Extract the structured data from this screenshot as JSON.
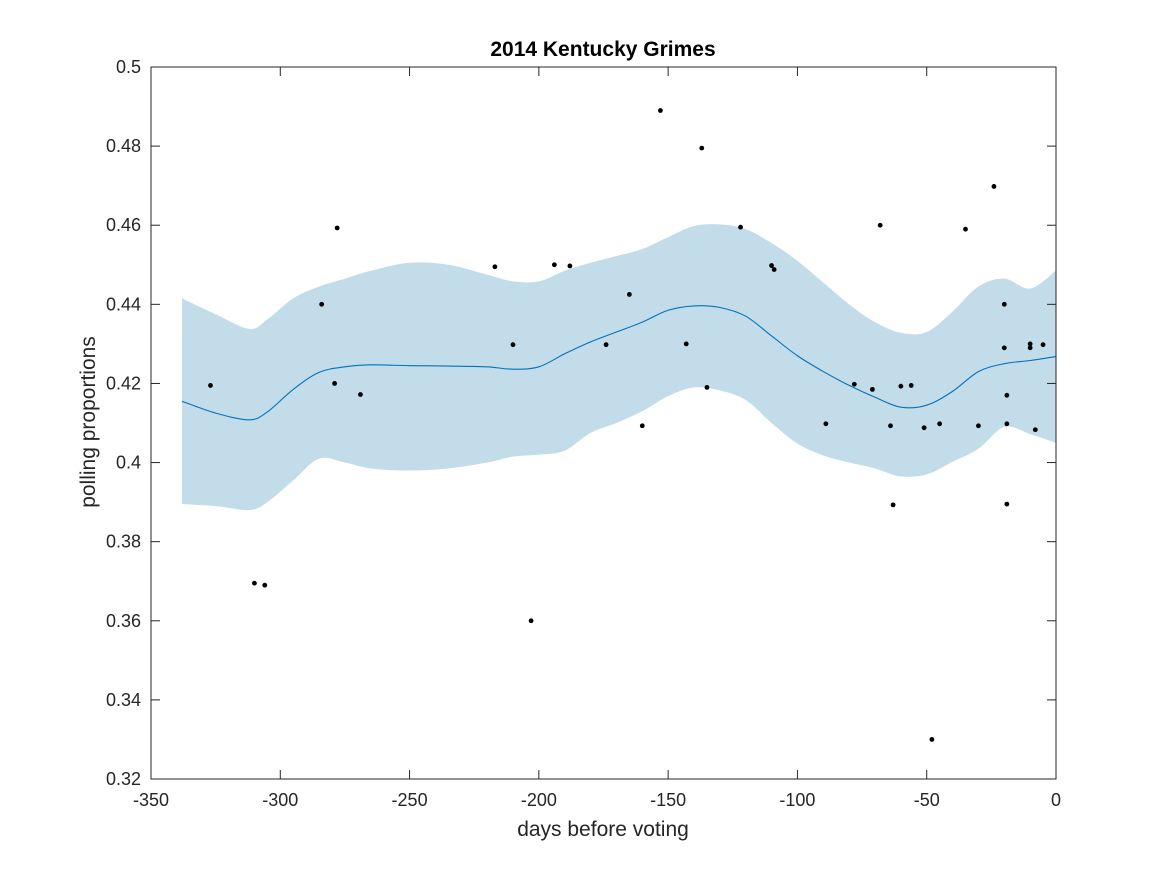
{
  "chart_data": {
    "type": "line",
    "title": "2014 Kentucky Grimes",
    "xlabel": "days before voting",
    "ylabel": "polling proportions",
    "xlim": [
      -350,
      0
    ],
    "ylim": [
      0.32,
      0.5
    ],
    "xticks": [
      -350,
      -300,
      -250,
      -200,
      -150,
      -100,
      -50,
      0
    ],
    "yticks": [
      0.32,
      0.34,
      0.36,
      0.38,
      0.4,
      0.42,
      0.44,
      0.46,
      0.48,
      0.5
    ],
    "xtick_labels": [
      "-350",
      "-300",
      "-250",
      "-200",
      "-150",
      "-100",
      "-50",
      "0"
    ],
    "ytick_labels": [
      "0.32",
      "0.34",
      "0.36",
      "0.38",
      "0.4",
      "0.42",
      "0.44",
      "0.46",
      "0.48",
      "0.5"
    ],
    "grid": false,
    "colors": {
      "band": "#c2dcea",
      "line": "#0072bd",
      "points": "#000000",
      "axes": "#262626"
    },
    "trend": {
      "x": [
        -338,
        -325,
        -312,
        -305,
        -295,
        -285,
        -275,
        -265,
        -250,
        -235,
        -220,
        -210,
        -200,
        -190,
        -180,
        -170,
        -160,
        -150,
        -140,
        -130,
        -120,
        -110,
        -100,
        -90,
        -80,
        -70,
        -60,
        -50,
        -40,
        -30,
        -20,
        -10,
        0
      ],
      "y": [
        0.4155,
        0.4125,
        0.4108,
        0.4128,
        0.4185,
        0.4228,
        0.4242,
        0.4247,
        0.4245,
        0.4244,
        0.4242,
        0.4236,
        0.4242,
        0.4275,
        0.4305,
        0.433,
        0.4355,
        0.4385,
        0.4396,
        0.4392,
        0.437,
        0.432,
        0.427,
        0.423,
        0.4195,
        0.4165,
        0.414,
        0.4145,
        0.418,
        0.423,
        0.425,
        0.4258,
        0.4268
      ]
    },
    "band_upper": [
      0.4415,
      0.4375,
      0.4338,
      0.4362,
      0.4415,
      0.4445,
      0.4465,
      0.4485,
      0.4505,
      0.45,
      0.4475,
      0.4458,
      0.4458,
      0.4485,
      0.4505,
      0.4522,
      0.454,
      0.457,
      0.4598,
      0.4602,
      0.459,
      0.4555,
      0.451,
      0.4455,
      0.44,
      0.4355,
      0.4328,
      0.433,
      0.4382,
      0.4445,
      0.4465,
      0.444,
      0.4485
    ],
    "band_lower": [
      0.3895,
      0.389,
      0.388,
      0.39,
      0.3955,
      0.401,
      0.4,
      0.3985,
      0.398,
      0.3985,
      0.4,
      0.4015,
      0.402,
      0.403,
      0.4075,
      0.41,
      0.413,
      0.4168,
      0.419,
      0.4182,
      0.4158,
      0.41,
      0.4048,
      0.4018,
      0.4,
      0.3985,
      0.3965,
      0.397,
      0.4002,
      0.4035,
      0.409,
      0.4072,
      0.405
    ],
    "points": [
      {
        "x": -327,
        "y": 0.4195
      },
      {
        "x": -310,
        "y": 0.3695
      },
      {
        "x": -306,
        "y": 0.369
      },
      {
        "x": -284,
        "y": 0.44
      },
      {
        "x": -279,
        "y": 0.42
      },
      {
        "x": -278,
        "y": 0.4593
      },
      {
        "x": -269,
        "y": 0.4172
      },
      {
        "x": -217,
        "y": 0.4495
      },
      {
        "x": -210,
        "y": 0.4298
      },
      {
        "x": -203,
        "y": 0.36
      },
      {
        "x": -194,
        "y": 0.45
      },
      {
        "x": -188,
        "y": 0.4497
      },
      {
        "x": -174,
        "y": 0.4298
      },
      {
        "x": -165,
        "y": 0.4425
      },
      {
        "x": -160,
        "y": 0.4093
      },
      {
        "x": -153,
        "y": 0.489
      },
      {
        "x": -143,
        "y": 0.43
      },
      {
        "x": -137,
        "y": 0.4795
      },
      {
        "x": -135,
        "y": 0.419
      },
      {
        "x": -122,
        "y": 0.4595
      },
      {
        "x": -110,
        "y": 0.4498
      },
      {
        "x": -109,
        "y": 0.4488
      },
      {
        "x": -89,
        "y": 0.4098
      },
      {
        "x": -78,
        "y": 0.4198
      },
      {
        "x": -71,
        "y": 0.4185
      },
      {
        "x": -68,
        "y": 0.46
      },
      {
        "x": -64,
        "y": 0.4093
      },
      {
        "x": -63,
        "y": 0.3893
      },
      {
        "x": -60,
        "y": 0.4193
      },
      {
        "x": -56,
        "y": 0.4195
      },
      {
        "x": -51,
        "y": 0.4088
      },
      {
        "x": -48,
        "y": 0.33
      },
      {
        "x": -45,
        "y": 0.4098
      },
      {
        "x": -35,
        "y": 0.459
      },
      {
        "x": -30,
        "y": 0.4093
      },
      {
        "x": -24,
        "y": 0.4698
      },
      {
        "x": -20,
        "y": 0.429
      },
      {
        "x": -20,
        "y": 0.44
      },
      {
        "x": -19,
        "y": 0.417
      },
      {
        "x": -19,
        "y": 0.4098
      },
      {
        "x": -19,
        "y": 0.3895
      },
      {
        "x": -10,
        "y": 0.429
      },
      {
        "x": -10,
        "y": 0.43
      },
      {
        "x": -8,
        "y": 0.4083
      },
      {
        "x": -5,
        "y": 0.4298
      }
    ]
  }
}
